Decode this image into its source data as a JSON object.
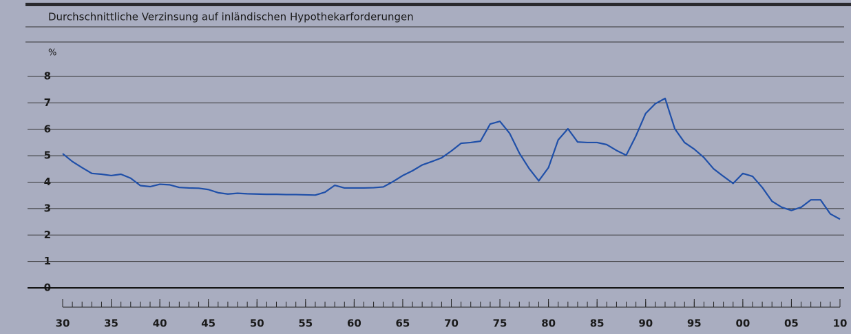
{
  "chart_data": {
    "type": "line",
    "title": "Durchschnittliche Verzinsung auf inländischen Hypothekarforderungen",
    "y_unit": "%",
    "x": [
      1930,
      1931,
      1932,
      1933,
      1934,
      1935,
      1936,
      1937,
      1938,
      1939,
      1940,
      1941,
      1942,
      1943,
      1944,
      1945,
      1946,
      1947,
      1948,
      1949,
      1950,
      1951,
      1952,
      1953,
      1954,
      1955,
      1956,
      1957,
      1958,
      1959,
      1960,
      1961,
      1962,
      1963,
      1964,
      1965,
      1966,
      1967,
      1968,
      1969,
      1970,
      1971,
      1972,
      1973,
      1974,
      1975,
      1976,
      1977,
      1978,
      1979,
      1980,
      1981,
      1982,
      1983,
      1984,
      1985,
      1986,
      1987,
      1988,
      1989,
      1990,
      1991,
      1992,
      1993,
      1994,
      1995,
      1996,
      1997,
      1998,
      1999,
      2000,
      2001,
      2002,
      2003,
      2004,
      2005,
      2006,
      2007,
      2008,
      2009,
      2010
    ],
    "series": [
      {
        "color": "#1f4fa8",
        "values": [
          5.08,
          4.78,
          4.55,
          4.33,
          4.3,
          4.25,
          4.3,
          4.15,
          3.87,
          3.83,
          3.92,
          3.9,
          3.8,
          3.78,
          3.77,
          3.72,
          3.6,
          3.55,
          3.58,
          3.56,
          3.55,
          3.54,
          3.54,
          3.53,
          3.53,
          3.52,
          3.51,
          3.62,
          3.88,
          3.78,
          3.78,
          3.78,
          3.79,
          3.82,
          4.02,
          4.25,
          4.43,
          4.65,
          4.78,
          4.92,
          5.18,
          5.47,
          5.5,
          5.55,
          6.2,
          6.3,
          5.85,
          5.1,
          4.52,
          4.05,
          4.55,
          5.6,
          6.02,
          5.52,
          5.5,
          5.5,
          5.42,
          5.2,
          5.02,
          5.75,
          6.6,
          6.97,
          7.17,
          6.02,
          5.5,
          5.25,
          4.93,
          4.5,
          4.22,
          3.95,
          4.33,
          4.22,
          3.8,
          3.28,
          3.05,
          2.93,
          3.05,
          3.33,
          3.33,
          2.8,
          2.6
        ]
      }
    ],
    "xlim": [
      1930,
      2010
    ],
    "xticks": [
      {
        "value": 1930,
        "label": "30"
      },
      {
        "value": 1935,
        "label": "35"
      },
      {
        "value": 1940,
        "label": "40"
      },
      {
        "value": 1945,
        "label": "45"
      },
      {
        "value": 1950,
        "label": "50"
      },
      {
        "value": 1955,
        "label": "55"
      },
      {
        "value": 1960,
        "label": "60"
      },
      {
        "value": 1965,
        "label": "65"
      },
      {
        "value": 1970,
        "label": "70"
      },
      {
        "value": 1975,
        "label": "75"
      },
      {
        "value": 1980,
        "label": "80"
      },
      {
        "value": 1985,
        "label": "85"
      },
      {
        "value": 1990,
        "label": "90"
      },
      {
        "value": 1995,
        "label": "95"
      },
      {
        "value": 2000,
        "label": "00"
      },
      {
        "value": 2005,
        "label": "05"
      },
      {
        "value": 2010,
        "label": "10"
      }
    ],
    "ylim": [
      0,
      8
    ],
    "yticks": [
      0,
      1,
      2,
      3,
      4,
      5,
      6,
      7,
      8
    ],
    "grid": true
  }
}
